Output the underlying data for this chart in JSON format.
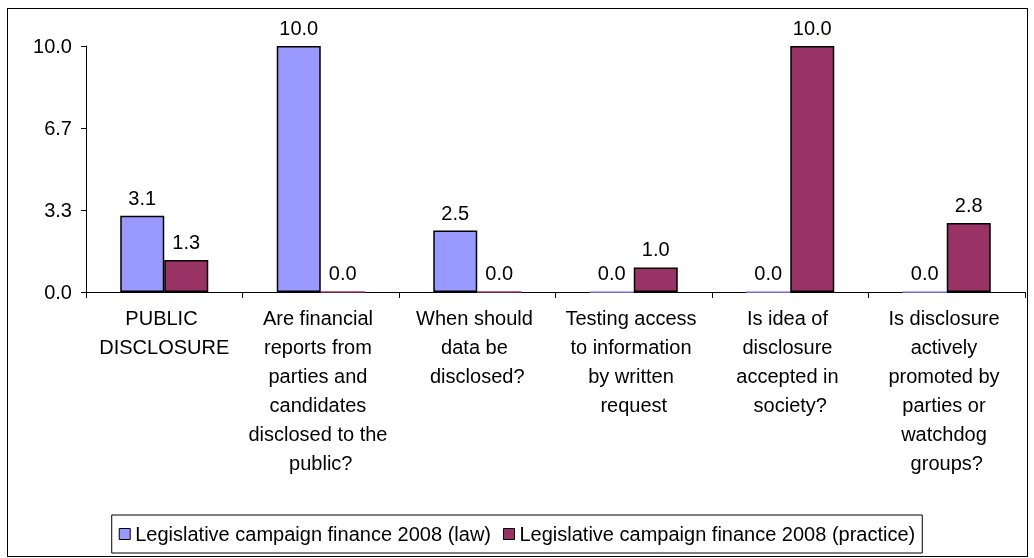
{
  "chart_data": {
    "type": "bar",
    "categories": [
      "PUBLIC DISCLOSURE",
      "Are financial reports from parties and candidates disclosed to the public?",
      "When should data be disclosed?",
      "Testing access to information by written request",
      "Is idea of disclosure accepted in society?",
      "Is disclosure actively promoted by parties or watchdog groups?"
    ],
    "series": [
      {
        "name": "Legislative campaign finance 2008 (law)",
        "color": "#9999ff",
        "values": [
          3.1,
          10,
          2.5,
          0,
          0,
          0
        ],
        "value_labels": [
          "3.1",
          "10.0",
          "2.5",
          "0.0",
          "0.0",
          "0.0"
        ]
      },
      {
        "name": "Legislative campaign finance 2008 (practice)",
        "color": "#993366",
        "values": [
          1.3,
          0,
          0,
          1,
          10,
          2.8
        ],
        "value_labels": [
          "1.3",
          "0.0",
          "0.0",
          "1.0",
          "10.0",
          "2.8"
        ]
      }
    ],
    "ylim": [
      0,
      10
    ],
    "yticks": [
      {
        "value": 0,
        "label": "0.0"
      },
      {
        "value": 3.333,
        "label": "3.3"
      },
      {
        "value": 6.667,
        "label": "6.7"
      },
      {
        "value": 10,
        "label": "10.0"
      }
    ],
    "grid": false,
    "legend": "bottom"
  }
}
